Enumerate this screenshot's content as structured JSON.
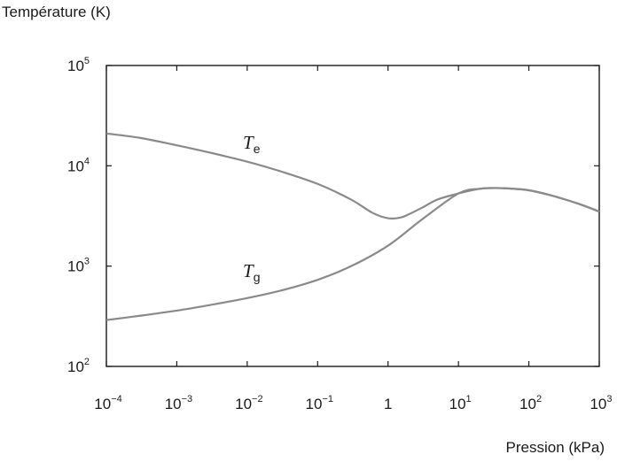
{
  "chart_data": {
    "type": "line",
    "xlabel": "Pression (kPa)",
    "ylabel": "Température (K)",
    "xscale": "log",
    "yscale": "log",
    "xlim": [
      0.0001,
      1000
    ],
    "ylim": [
      100,
      100000
    ],
    "grid": false,
    "x_ticks": [
      {
        "value": 0.0001,
        "base": "10",
        "exp": "−4"
      },
      {
        "value": 0.001,
        "base": "10",
        "exp": "−3"
      },
      {
        "value": 0.01,
        "base": "10",
        "exp": "−2"
      },
      {
        "value": 0.1,
        "base": "10",
        "exp": "−1"
      },
      {
        "value": 1,
        "base": "1",
        "exp": ""
      },
      {
        "value": 10,
        "base": "10",
        "exp": "1"
      },
      {
        "value": 100,
        "base": "10",
        "exp": "2"
      },
      {
        "value": 1000,
        "base": "10",
        "exp": "3"
      }
    ],
    "y_ticks": [
      {
        "value": 100,
        "base": "10",
        "exp": "2"
      },
      {
        "value": 1000,
        "base": "10",
        "exp": "3"
      },
      {
        "value": 10000,
        "base": "10",
        "exp": "4"
      },
      {
        "value": 100000,
        "base": "10",
        "exp": "5"
      }
    ],
    "series": [
      {
        "name": "Te",
        "x": [
          0.0001,
          0.0003,
          0.001,
          0.003,
          0.01,
          0.03,
          0.1,
          0.3,
          0.6,
          1,
          1.5,
          2,
          3,
          5,
          10,
          20,
          30,
          50,
          100,
          200,
          500,
          1000
        ],
        "y": [
          21000,
          19000,
          16000,
          13500,
          11000,
          8800,
          6600,
          4600,
          3400,
          3000,
          3050,
          3300,
          3800,
          4600,
          5300,
          5900,
          6000,
          5950,
          5700,
          5100,
          4200,
          3500
        ]
      },
      {
        "name": "Tg",
        "x": [
          0.0001,
          0.0003,
          0.001,
          0.003,
          0.01,
          0.03,
          0.1,
          0.3,
          1,
          3,
          10,
          20,
          30,
          50,
          100,
          200,
          500,
          1000
        ],
        "y": [
          290,
          320,
          360,
          410,
          480,
          570,
          730,
          1000,
          1600,
          2900,
          5300,
          5900,
          6000,
          5950,
          5700,
          5100,
          4200,
          3500
        ]
      }
    ],
    "annotations": [
      {
        "series": "Te",
        "main": "T",
        "sub": "e",
        "x": 0.4,
        "y": 13500
      },
      {
        "series": "Tg",
        "main": "T",
        "sub": "g",
        "x": 0.4,
        "y": 650
      }
    ]
  }
}
